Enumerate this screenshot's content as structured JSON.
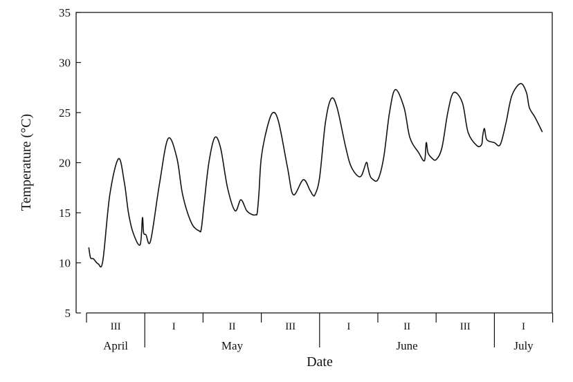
{
  "chart_data": {
    "type": "line",
    "title": "",
    "xlabel": "Date",
    "ylabel": "Temperature (°C)",
    "ylim": [
      5,
      35
    ],
    "yticks": [
      "5",
      "10",
      "15",
      "20",
      "25",
      "30",
      "35"
    ],
    "grid": false,
    "periods": [
      {
        "label": "III",
        "month": "April"
      },
      {
        "label": "I",
        "month": "May"
      },
      {
        "label": "II",
        "month": "May"
      },
      {
        "label": "III",
        "month": "May"
      },
      {
        "label": "I",
        "month": "June"
      },
      {
        "label": "II",
        "month": "June"
      },
      {
        "label": "III",
        "month": "June"
      },
      {
        "label": "I",
        "month": "July"
      }
    ],
    "months": [
      {
        "name": "April",
        "periods": 1
      },
      {
        "name": "May",
        "periods": 3
      },
      {
        "name": "June",
        "periods": 3
      },
      {
        "name": "July",
        "periods": 1
      }
    ],
    "series": [
      {
        "x": [
          0.04,
          0.07,
          0.12,
          0.2,
          0.28,
          0.4,
          0.55,
          0.65,
          0.72,
          0.8,
          0.92,
          0.96,
          0.98,
          1.02,
          1.1,
          1.25,
          1.4,
          1.55,
          1.65,
          1.8,
          1.93,
          1.97,
          2.02,
          2.1,
          2.2,
          2.3,
          2.42,
          2.55,
          2.65,
          2.75,
          2.85,
          2.9,
          2.93,
          2.96,
          3.0,
          3.1,
          3.2,
          3.3,
          3.45,
          3.55,
          3.72,
          3.83,
          3.86,
          3.88,
          3.92,
          4.0,
          4.1,
          4.2,
          4.3,
          4.45,
          4.55,
          4.7,
          4.8,
          4.83,
          4.86,
          4.9,
          5.0,
          5.1,
          5.2,
          5.3,
          5.45,
          5.55,
          5.7,
          5.8,
          5.83,
          5.86,
          5.92,
          6.0,
          6.1,
          6.2,
          6.3,
          6.45,
          6.55,
          6.7,
          6.78,
          6.8,
          6.83,
          6.87,
          7.0,
          7.1,
          7.2,
          7.3,
          7.45,
          7.55,
          7.6,
          7.7,
          7.82
        ],
        "y": [
          11.5,
          10.5,
          10.4,
          9.9,
          10.2,
          16.8,
          20.4,
          18.0,
          15.0,
          13.0,
          11.8,
          14.5,
          13.0,
          12.8,
          12.2,
          17.8,
          22.4,
          20.5,
          16.8,
          14.0,
          13.2,
          13.4,
          16.0,
          20.0,
          22.5,
          21.5,
          17.5,
          15.2,
          16.3,
          15.2,
          14.8,
          14.8,
          15.0,
          17.0,
          20.5,
          23.5,
          25.0,
          24.0,
          19.5,
          16.8,
          18.3,
          17.3,
          17.0,
          16.8,
          16.8,
          18.5,
          24.0,
          26.4,
          25.5,
          21.5,
          19.5,
          18.6,
          20.0,
          19.5,
          18.8,
          18.4,
          18.3,
          20.5,
          25.0,
          27.3,
          25.5,
          22.5,
          21.0,
          20.2,
          22.0,
          21.0,
          20.5,
          20.3,
          21.5,
          25.0,
          27.0,
          26.0,
          23.0,
          21.7,
          21.8,
          22.7,
          23.4,
          22.3,
          22.0,
          21.8,
          24.0,
          26.7,
          27.9,
          27.0,
          25.5,
          24.5,
          23.1
        ]
      }
    ]
  }
}
